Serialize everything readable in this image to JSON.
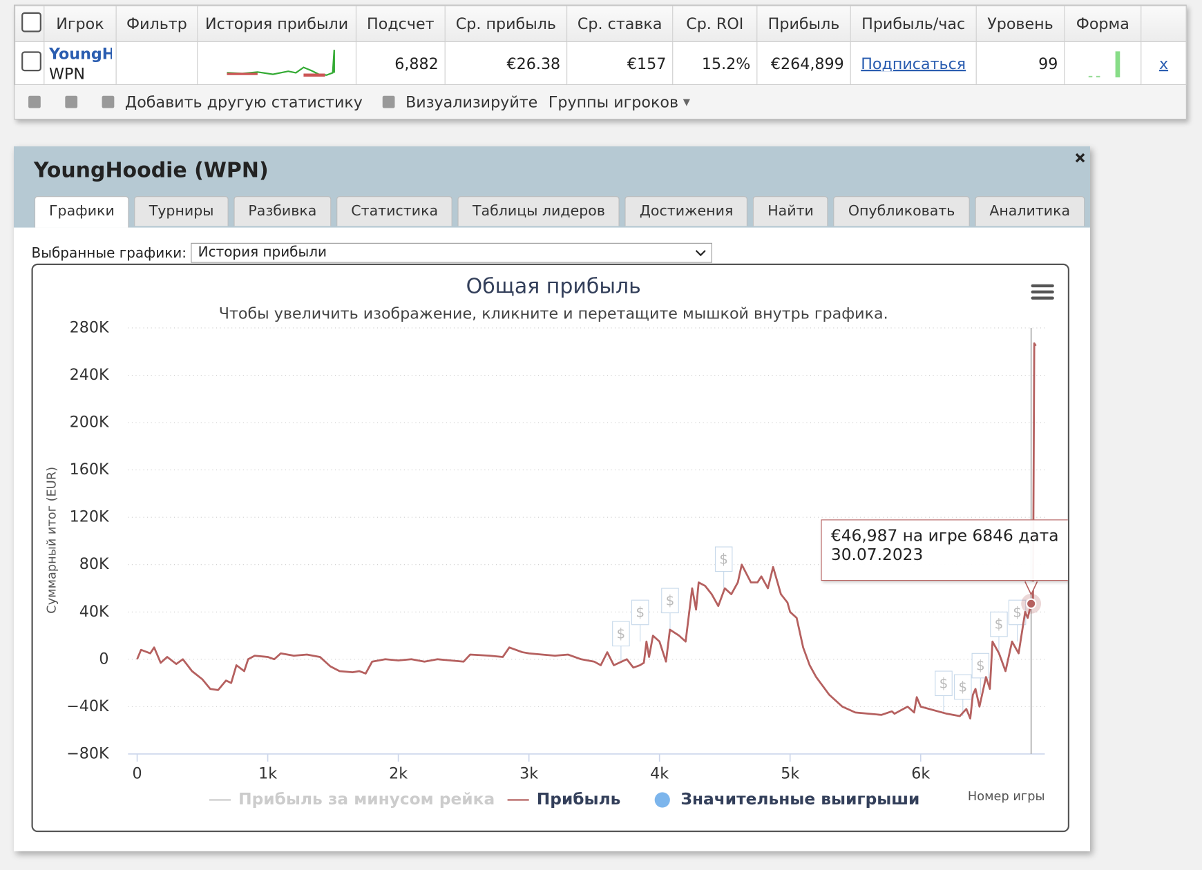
{
  "table": {
    "headers": [
      "Игрок",
      "Фильтр",
      "История прибыли",
      "Подсчет",
      "Ср. прибыль",
      "Ср. ставка",
      "Ср. ROI",
      "Прибыль",
      "Прибыль/час",
      "Уровень",
      "Форма"
    ],
    "row": {
      "player": "YoungHoodie",
      "network": "WPN",
      "count": "6,882",
      "avg_profit": "€26.38",
      "avg_stake": "€157",
      "avg_roi": "15.2%",
      "profit": "€264,899",
      "profit_per_hour": "Подписаться",
      "level": "99",
      "remove": "x"
    },
    "toolbar": [
      "Добавить другую статистику",
      "Визуализируйте",
      "Группы игроков"
    ]
  },
  "panel": {
    "title": "YoungHoodie (WPN)",
    "tabs": [
      "Графики",
      "Турниры",
      "Разбивка",
      "Статистика",
      "Таблицы лидеров",
      "Достижения",
      "Найти",
      "Опубликовать",
      "Аналитика"
    ],
    "select_label": "Выбранные графики:",
    "select_value": "История прибыли"
  },
  "chart_data": {
    "type": "line",
    "title": "Общая прибыль",
    "subtitle": "Чтобы увеличить изображение, кликните и перетащите мышкой внутрь графика.",
    "y_label": "Суммарный итог (EUR)",
    "x_label": "Номер игры",
    "xlim": [
      -70,
      6951
    ],
    "ylim": [
      -80000,
      280000
    ],
    "xticks": [
      0,
      {
        "value": 1000,
        "label": "1k"
      },
      {
        "value": 2000,
        "label": "2k"
      },
      {
        "value": 3000,
        "label": "3k"
      },
      {
        "value": 4000,
        "label": "4k"
      },
      {
        "value": 5000,
        "label": "5k"
      },
      {
        "value": 6000,
        "label": "6k"
      }
    ],
    "yticks": [
      {
        "value": 280000,
        "label": "280K"
      },
      {
        "value": 240000,
        "label": "240K"
      },
      {
        "value": 200000,
        "label": "200K"
      },
      {
        "value": 160000,
        "label": "160K"
      },
      {
        "value": 120000,
        "label": "120K"
      },
      {
        "value": 80000,
        "label": "80K"
      },
      {
        "value": 40000,
        "label": "40K"
      },
      0,
      {
        "value": -40000,
        "label": "−40K"
      },
      {
        "value": -80000,
        "label": "−80K"
      }
    ],
    "grid": true,
    "series": [
      {
        "name": "Прибыль за минусом рейка",
        "color": "#cccccc",
        "x": [],
        "values": []
      },
      {
        "name": "Прибыль",
        "color": "#b5605f",
        "x": [
          0,
          30,
          100,
          130,
          180,
          230,
          300,
          350,
          420,
          500,
          560,
          620,
          680,
          720,
          760,
          820,
          850,
          900,
          1000,
          1050,
          1100,
          1200,
          1300,
          1400,
          1480,
          1550,
          1650,
          1700,
          1750,
          1800,
          1900,
          2000,
          2100,
          2200,
          2300,
          2400,
          2500,
          2550,
          2700,
          2800,
          2850,
          2950,
          3000,
          3100,
          3200,
          3300,
          3400,
          3500,
          3550,
          3600,
          3650,
          3750,
          3800,
          3850,
          3880,
          3900,
          3920,
          3950,
          4000,
          4050,
          4080,
          4150,
          4200,
          4250,
          4280,
          4300,
          4350,
          4400,
          4450,
          4500,
          4550,
          4600,
          4630,
          4700,
          4750,
          4780,
          4830,
          4870,
          4930,
          4980,
          5000,
          5050,
          5100,
          5150,
          5200,
          5300,
          5400,
          5500,
          5600,
          5700,
          5780,
          5800,
          5900,
          5950,
          5970,
          6000,
          6100,
          6200,
          6300,
          6350,
          6380,
          6400,
          6420,
          6450,
          6500,
          6530,
          6550,
          6600,
          6650,
          6700,
          6750,
          6800,
          6820,
          6846,
          6860,
          6870,
          6882
        ],
        "values": [
          0,
          8000,
          5000,
          10000,
          -3000,
          2000,
          -4000,
          0,
          -10000,
          -17000,
          -25000,
          -26000,
          -18000,
          -20000,
          -5000,
          -10000,
          0,
          3000,
          2000,
          0,
          5000,
          3000,
          4000,
          2000,
          -6000,
          -10000,
          -11000,
          -10000,
          -12000,
          -2000,
          0,
          -1000,
          0,
          -2000,
          0,
          -1000,
          -2000,
          4000,
          3000,
          2000,
          10000,
          6000,
          5000,
          4000,
          3000,
          4000,
          0,
          -2000,
          -5000,
          6000,
          -5000,
          0,
          -7000,
          -5000,
          -3000,
          15000,
          2000,
          20000,
          15000,
          -2000,
          25000,
          20000,
          15000,
          60000,
          42000,
          65000,
          62000,
          55000,
          45000,
          60000,
          55000,
          65000,
          80000,
          65000,
          65000,
          70000,
          60000,
          78000,
          55000,
          48000,
          40000,
          35000,
          10000,
          -5000,
          -15000,
          -30000,
          -40000,
          -45000,
          -46000,
          -47000,
          -44000,
          -46000,
          -40000,
          -45000,
          -32000,
          -40000,
          -43000,
          -46000,
          -48000,
          -42000,
          -50000,
          -30000,
          -25000,
          -40000,
          -15000,
          -25000,
          15000,
          5000,
          -10000,
          15000,
          5000,
          40000,
          35000,
          46987,
          45000,
          267000,
          264899
        ]
      },
      {
        "name": "Значительные выигрыши",
        "color": "#7cb5ec",
        "x": [
          3705,
          3852,
          4081,
          4492,
          6176,
          6323,
          6458,
          6599,
          6740
        ],
        "values": [
          -3000,
          15000,
          25000,
          60000,
          -45000,
          -48000,
          -30000,
          5000,
          15000
        ],
        "marker_label": "$"
      }
    ],
    "tooltip": {
      "x": 6846,
      "value": 46987,
      "text": "€46,987 на игре 6846 дата 30.07.2023"
    }
  }
}
